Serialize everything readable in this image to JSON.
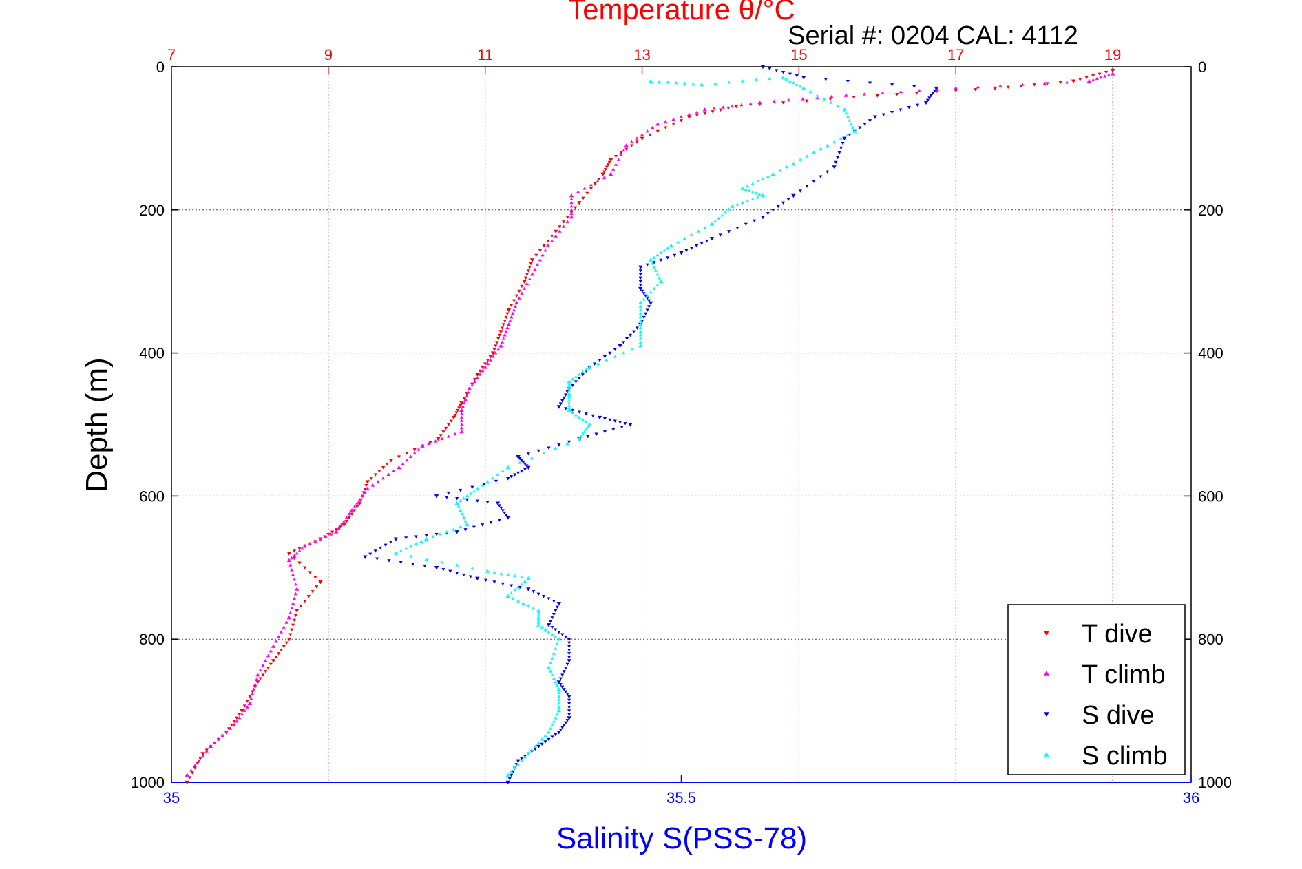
{
  "chart_data": {
    "type": "scatter",
    "title": "Temperature θ/°C",
    "subtitle": "Serial #: 0204  CAL: 4112",
    "xlabel": "Salinity S(PSS-78)",
    "ylabel": "Depth (m)",
    "ylim": [
      1000,
      0
    ],
    "yticks": [
      0,
      200,
      400,
      600,
      800,
      1000
    ],
    "ytick_labels": [
      "0",
      "200",
      "400",
      "600",
      "800",
      "1000"
    ],
    "x_bottom": {
      "label": "Salinity S(PSS-78)",
      "lim": [
        35,
        36
      ],
      "ticks": [
        35,
        35.5,
        36
      ],
      "tick_labels": [
        "35",
        "35.5",
        "36"
      ],
      "color": "#0000ff"
    },
    "x_top": {
      "label": "Temperature θ/°C",
      "lim": [
        7,
        20
      ],
      "ticks": [
        7,
        9,
        11,
        13,
        15,
        17,
        19
      ],
      "tick_labels": [
        "7",
        "9",
        "11",
        "13",
        "15",
        "17",
        "19"
      ],
      "color": "#ff0000"
    },
    "grid": true,
    "legend_position": "bottom-right",
    "series": [
      {
        "name": "T dive",
        "axis": "top",
        "marker": "triangle-down",
        "color": "#ff0000",
        "points": [
          [
            19.0,
            5
          ],
          [
            18.5,
            20
          ],
          [
            17.5,
            30
          ],
          [
            16.0,
            40
          ],
          [
            14.2,
            55
          ],
          [
            13.6,
            70
          ],
          [
            13.0,
            100
          ],
          [
            12.6,
            130
          ],
          [
            12.5,
            150
          ],
          [
            12.2,
            190
          ],
          [
            11.9,
            230
          ],
          [
            11.6,
            270
          ],
          [
            11.5,
            300
          ],
          [
            11.3,
            340
          ],
          [
            11.2,
            370
          ],
          [
            11.1,
            400
          ],
          [
            10.9,
            430
          ],
          [
            10.7,
            470
          ],
          [
            10.6,
            490
          ],
          [
            10.4,
            520
          ],
          [
            9.8,
            550
          ],
          [
            9.5,
            580
          ],
          [
            9.4,
            610
          ],
          [
            9.2,
            640
          ],
          [
            8.9,
            660
          ],
          [
            8.5,
            680
          ],
          [
            8.9,
            720
          ],
          [
            8.6,
            760
          ],
          [
            8.5,
            800
          ],
          [
            8.3,
            830
          ],
          [
            8.1,
            860
          ],
          [
            7.9,
            900
          ],
          [
            7.7,
            930
          ],
          [
            7.4,
            960
          ],
          [
            7.2,
            1000
          ]
        ]
      },
      {
        "name": "T climb",
        "axis": "top",
        "marker": "triangle-up",
        "color": "#ff00ff",
        "points": [
          [
            19.0,
            10
          ],
          [
            18.7,
            20
          ],
          [
            17.0,
            30
          ],
          [
            15.6,
            40
          ],
          [
            14.5,
            50
          ],
          [
            13.8,
            60
          ],
          [
            13.2,
            80
          ],
          [
            12.8,
            110
          ],
          [
            12.6,
            150
          ],
          [
            12.1,
            180
          ],
          [
            12.1,
            210
          ],
          [
            11.8,
            250
          ],
          [
            11.6,
            290
          ],
          [
            11.4,
            330
          ],
          [
            11.3,
            360
          ],
          [
            11.2,
            390
          ],
          [
            11.0,
            420
          ],
          [
            10.8,
            450
          ],
          [
            10.7,
            480
          ],
          [
            10.7,
            510
          ],
          [
            10.2,
            530
          ],
          [
            9.9,
            560
          ],
          [
            9.5,
            590
          ],
          [
            9.3,
            620
          ],
          [
            9.1,
            650
          ],
          [
            8.7,
            670
          ],
          [
            8.5,
            690
          ],
          [
            8.6,
            730
          ],
          [
            8.5,
            770
          ],
          [
            8.3,
            810
          ],
          [
            8.1,
            850
          ],
          [
            8.0,
            890
          ],
          [
            7.8,
            920
          ],
          [
            7.5,
            950
          ],
          [
            7.2,
            990
          ]
        ]
      },
      {
        "name": "S dive",
        "axis": "bottom",
        "marker": "triangle-down",
        "color": "#0000ff",
        "points": [
          [
            35.58,
            0
          ],
          [
            35.62,
            15
          ],
          [
            35.75,
            30
          ],
          [
            35.74,
            50
          ],
          [
            35.69,
            70
          ],
          [
            35.66,
            100
          ],
          [
            35.65,
            140
          ],
          [
            35.61,
            180
          ],
          [
            35.58,
            210
          ],
          [
            35.53,
            240
          ],
          [
            35.5,
            260
          ],
          [
            35.46,
            280
          ],
          [
            35.46,
            310
          ],
          [
            35.47,
            330
          ],
          [
            35.46,
            360
          ],
          [
            35.44,
            390
          ],
          [
            35.41,
            420
          ],
          [
            35.39,
            450
          ],
          [
            35.38,
            475
          ],
          [
            35.42,
            490
          ],
          [
            35.45,
            500
          ],
          [
            35.4,
            520
          ],
          [
            35.34,
            545
          ],
          [
            35.35,
            560
          ],
          [
            35.33,
            575
          ],
          [
            35.26,
            600
          ],
          [
            35.32,
            610
          ],
          [
            35.33,
            630
          ],
          [
            35.28,
            650
          ],
          [
            35.22,
            660
          ],
          [
            35.19,
            685
          ],
          [
            35.26,
            700
          ],
          [
            35.3,
            715
          ],
          [
            35.35,
            730
          ],
          [
            35.38,
            750
          ],
          [
            35.37,
            780
          ],
          [
            35.39,
            800
          ],
          [
            35.39,
            830
          ],
          [
            35.38,
            860
          ],
          [
            35.39,
            880
          ],
          [
            35.39,
            910
          ],
          [
            35.38,
            930
          ],
          [
            35.36,
            950
          ],
          [
            35.34,
            970
          ],
          [
            35.33,
            1000
          ]
        ]
      },
      {
        "name": "S climb",
        "axis": "bottom",
        "marker": "triangle-up",
        "color": "#00ffff",
        "points": [
          [
            35.47,
            20
          ],
          [
            35.52,
            25
          ],
          [
            35.6,
            15
          ],
          [
            35.62,
            30
          ],
          [
            35.66,
            60
          ],
          [
            35.67,
            90
          ],
          [
            35.63,
            120
          ],
          [
            35.59,
            150
          ],
          [
            35.56,
            170
          ],
          [
            35.58,
            180
          ],
          [
            35.55,
            195
          ],
          [
            35.53,
            220
          ],
          [
            35.49,
            250
          ],
          [
            35.47,
            270
          ],
          [
            35.48,
            300
          ],
          [
            35.46,
            330
          ],
          [
            35.46,
            360
          ],
          [
            35.46,
            390
          ],
          [
            35.41,
            420
          ],
          [
            35.39,
            440
          ],
          [
            35.39,
            460
          ],
          [
            35.39,
            480
          ],
          [
            35.41,
            500
          ],
          [
            35.4,
            520
          ],
          [
            35.33,
            560
          ],
          [
            35.3,
            590
          ],
          [
            35.28,
            610
          ],
          [
            35.29,
            640
          ],
          [
            35.25,
            660
          ],
          [
            35.22,
            680
          ],
          [
            35.31,
            705
          ],
          [
            35.35,
            715
          ],
          [
            35.33,
            740
          ],
          [
            35.36,
            760
          ],
          [
            35.36,
            780
          ],
          [
            35.38,
            800
          ],
          [
            35.37,
            840
          ],
          [
            35.38,
            870
          ],
          [
            35.38,
            900
          ],
          [
            35.37,
            930
          ],
          [
            35.35,
            960
          ],
          [
            35.33,
            990
          ]
        ]
      }
    ]
  }
}
